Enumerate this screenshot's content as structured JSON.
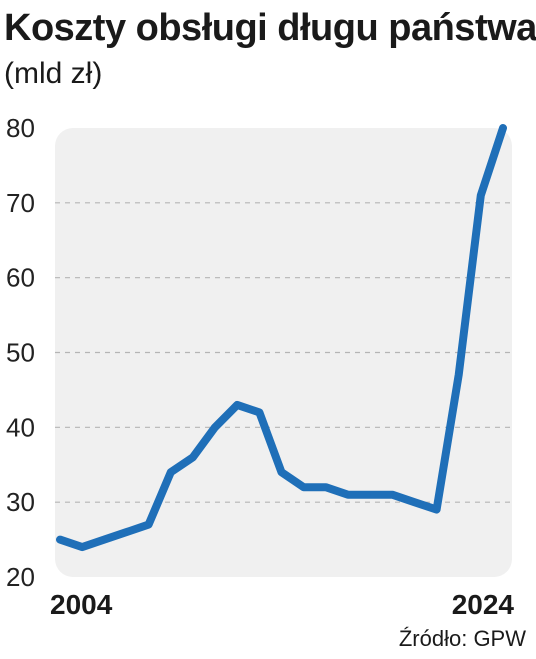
{
  "title": "Koszty obsługi długu państwa",
  "unit": "(mld zł)",
  "source": "Źródło: GPW",
  "colors": {
    "line": "#1f6fb8",
    "plot_background": "#f0f0f0",
    "grid": "#b5b5b5"
  },
  "chart_data": {
    "type": "line",
    "title": "Koszty obsługi długu państwa",
    "subtitle": "(mld zł)",
    "xlabel": "",
    "ylabel": "",
    "x": [
      2004,
      2005,
      2006,
      2007,
      2008,
      2009,
      2010,
      2011,
      2012,
      2013,
      2014,
      2015,
      2016,
      2017,
      2018,
      2019,
      2020,
      2021,
      2022,
      2023,
      2024
    ],
    "series": [
      {
        "values": [
          25,
          24,
          25,
          26,
          27,
          34,
          36,
          40,
          43,
          42,
          34,
          32,
          32,
          31,
          31,
          31,
          30,
          29,
          47,
          71,
          80
        ]
      }
    ],
    "xtick_labels": [
      "2004",
      "2024"
    ],
    "yticks": [
      20,
      30,
      40,
      50,
      60,
      70,
      80
    ],
    "ylim": [
      20,
      80
    ],
    "xlim": [
      2004,
      2024
    ],
    "grid": true,
    "grid_style": "dashed horizontal"
  }
}
